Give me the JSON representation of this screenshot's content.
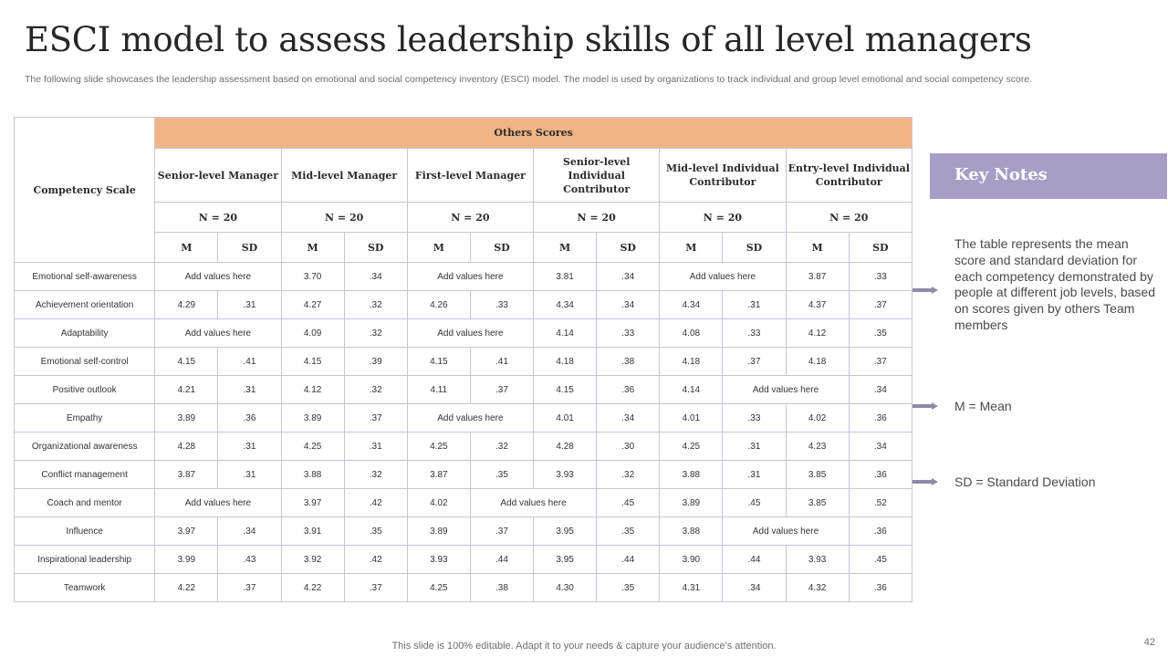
{
  "title": "ESCI model to assess leadership skills of all level managers",
  "subtitle": "The following slide showcases the leadership assessment based on emotional and social competency inventory (ESCI) model. The model is used by organizations to track individual and group level emotional and social competency score.",
  "table": {
    "corner_label": "Competency Scale",
    "others_label": "Others Scores",
    "groups": [
      "Senior-level Manager",
      "Mid-level Manager",
      "First-level Manager",
      "Senior-level Individual Contributor",
      "Mid-level Individual Contributor",
      "Entry-level Individual Contributor"
    ],
    "n_labels": [
      "N = 20",
      "N = 20",
      "N = 20",
      "N = 20",
      "N = 20",
      "N = 20"
    ],
    "m_label": "M",
    "sd_label": "SD",
    "rows": [
      {
        "name": "Emotional  self-awareness",
        "cells": [
          {
            "text": "Add values here",
            "span": 2
          },
          {
            "text": "3.70"
          },
          {
            "text": ".34"
          },
          {
            "text": "Add values here",
            "span": 2
          },
          {
            "text": "3.81"
          },
          {
            "text": ".34"
          },
          {
            "text": "Add values here",
            "span": 2
          },
          {
            "text": "3.87"
          },
          {
            "text": ".33"
          }
        ]
      },
      {
        "name": "Achievement orientation",
        "cells": [
          {
            "text": "4.29"
          },
          {
            "text": ".31"
          },
          {
            "text": "4.27"
          },
          {
            "text": ".32"
          },
          {
            "text": "4.26"
          },
          {
            "text": ".33"
          },
          {
            "text": "4.34"
          },
          {
            "text": ".34"
          },
          {
            "text": "4.34"
          },
          {
            "text": ".31"
          },
          {
            "text": "4.37"
          },
          {
            "text": ".37"
          }
        ]
      },
      {
        "name": "Adaptability",
        "cells": [
          {
            "text": "Add values here",
            "span": 2
          },
          {
            "text": "4.09"
          },
          {
            "text": ".32"
          },
          {
            "text": "Add values here",
            "span": 2
          },
          {
            "text": "4.14"
          },
          {
            "text": ".33"
          },
          {
            "text": "4.08"
          },
          {
            "text": ".33"
          },
          {
            "text": "4.12"
          },
          {
            "text": ".35"
          }
        ]
      },
      {
        "name": "Emotional  self-control",
        "cells": [
          {
            "text": "4.15"
          },
          {
            "text": ".41"
          },
          {
            "text": "4.15"
          },
          {
            "text": ".39"
          },
          {
            "text": "4.15"
          },
          {
            "text": ".41"
          },
          {
            "text": "4.18"
          },
          {
            "text": ".38"
          },
          {
            "text": "4.18"
          },
          {
            "text": ".37"
          },
          {
            "text": "4.18"
          },
          {
            "text": ".37"
          }
        ]
      },
      {
        "name": "Positive outlook",
        "cells": [
          {
            "text": "4.21"
          },
          {
            "text": ".31"
          },
          {
            "text": "4.12"
          },
          {
            "text": ".32"
          },
          {
            "text": "4.11"
          },
          {
            "text": ".37"
          },
          {
            "text": "4.15"
          },
          {
            "text": ".36"
          },
          {
            "text": "4.14"
          },
          {
            "text": "Add values here",
            "span": 2
          },
          {
            "text": ".34"
          }
        ]
      },
      {
        "name": "Empathy",
        "cells": [
          {
            "text": "3.89"
          },
          {
            "text": ".36"
          },
          {
            "text": "3.89"
          },
          {
            "text": ".37"
          },
          {
            "text": "Add values here",
            "span": 2
          },
          {
            "text": "4.01"
          },
          {
            "text": ".34"
          },
          {
            "text": "4.01"
          },
          {
            "text": ".33"
          },
          {
            "text": "4.02"
          },
          {
            "text": ".36"
          }
        ]
      },
      {
        "name": "Organizational awareness",
        "cells": [
          {
            "text": "4.28"
          },
          {
            "text": ".31"
          },
          {
            "text": "4.25"
          },
          {
            "text": ".31"
          },
          {
            "text": "4.25"
          },
          {
            "text": ".32"
          },
          {
            "text": "4.28"
          },
          {
            "text": ".30"
          },
          {
            "text": "4.25"
          },
          {
            "text": ".31"
          },
          {
            "text": "4.23"
          },
          {
            "text": ".34"
          }
        ]
      },
      {
        "name": "Conflict management",
        "cells": [
          {
            "text": "3.87"
          },
          {
            "text": ".31"
          },
          {
            "text": "3.88"
          },
          {
            "text": ".32"
          },
          {
            "text": "3.87"
          },
          {
            "text": ".35"
          },
          {
            "text": "3.93"
          },
          {
            "text": ".32"
          },
          {
            "text": "3.88"
          },
          {
            "text": ".31"
          },
          {
            "text": "3.85"
          },
          {
            "text": ".36"
          }
        ]
      },
      {
        "name": "Coach and mentor",
        "cells": [
          {
            "text": "Add values here",
            "span": 2
          },
          {
            "text": "3.97"
          },
          {
            "text": ".42"
          },
          {
            "text": "4.02"
          },
          {
            "text": "Add values here",
            "span": 2
          },
          {
            "text": ".45"
          },
          {
            "text": "3.89"
          },
          {
            "text": ".45"
          },
          {
            "text": "3.85"
          },
          {
            "text": ".52"
          }
        ]
      },
      {
        "name": "Influence",
        "cells": [
          {
            "text": "3.97"
          },
          {
            "text": ".34"
          },
          {
            "text": "3.91"
          },
          {
            "text": ".35"
          },
          {
            "text": "3.89"
          },
          {
            "text": ".37"
          },
          {
            "text": "3.95"
          },
          {
            "text": ".35"
          },
          {
            "text": "3.88"
          },
          {
            "text": "Add values here",
            "span": 2
          },
          {
            "text": ".36"
          }
        ]
      },
      {
        "name": "Inspirational leadership",
        "cells": [
          {
            "text": "3.99"
          },
          {
            "text": ".43"
          },
          {
            "text": "3.92"
          },
          {
            "text": ".42"
          },
          {
            "text": "3.93"
          },
          {
            "text": ".44"
          },
          {
            "text": "3.95"
          },
          {
            "text": ".44"
          },
          {
            "text": "3.90"
          },
          {
            "text": ".44"
          },
          {
            "text": "3.93"
          },
          {
            "text": ".45"
          }
        ]
      },
      {
        "name": "Teamwork",
        "cells": [
          {
            "text": "4.22"
          },
          {
            "text": ".37"
          },
          {
            "text": "4.22"
          },
          {
            "text": ".37"
          },
          {
            "text": "4.25"
          },
          {
            "text": ".38"
          },
          {
            "text": "4.30"
          },
          {
            "text": ".35"
          },
          {
            "text": "4.31"
          },
          {
            "text": ".34"
          },
          {
            "text": "4.32"
          },
          {
            "text": ".36"
          }
        ]
      }
    ]
  },
  "key_notes": {
    "title": "Key Notes",
    "note1": "The table represents the mean score and standard deviation for each competency demonstrated by people at different job levels, based on scores given by others Team members",
    "note2": "M = Mean",
    "note3": "SD = Standard Deviation"
  },
  "footer": "This slide is 100% editable. Adapt it to your needs & capture your audience’s attention.",
  "page_number": "42",
  "colors": {
    "header_orange": "#f0b486",
    "key_box": "#a69ec4",
    "grid_border": "#c9c3dd",
    "arrow": "#8f8aa6"
  }
}
